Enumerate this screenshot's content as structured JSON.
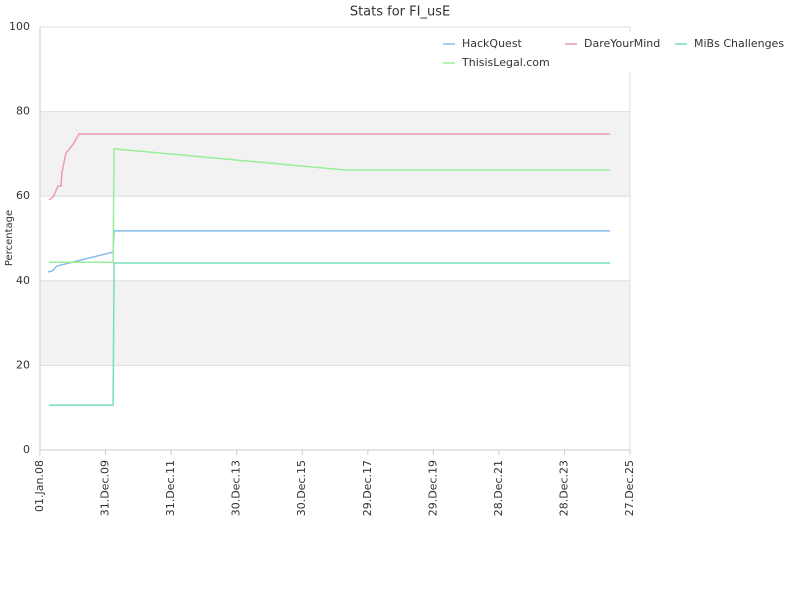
{
  "chart_data": {
    "type": "line",
    "title": "Stats for FI_usE",
    "y_label": "Percentage",
    "xlim": [
      "2008-01-01",
      "2025-12-27"
    ],
    "xticks": [
      {
        "value": "2008-01-01",
        "label": "01.Jan.08"
      },
      {
        "value": "2009-12-31",
        "label": "31.Dec.09"
      },
      {
        "value": "2011-12-31",
        "label": "31.Dec.11"
      },
      {
        "value": "2013-12-30",
        "label": "30.Dec.13"
      },
      {
        "value": "2015-12-30",
        "label": "30.Dec.15"
      },
      {
        "value": "2017-12-29",
        "label": "29.Dec.17"
      },
      {
        "value": "2019-12-29",
        "label": "29.Dec.19"
      },
      {
        "value": "2021-12-28",
        "label": "28.Dec.21"
      },
      {
        "value": "2023-12-28",
        "label": "28.Dec.23"
      },
      {
        "value": "2025-12-27",
        "label": "27.Dec.25"
      }
    ],
    "ylim": [
      0,
      100
    ],
    "yticks": [
      0,
      20,
      40,
      60,
      80,
      100
    ],
    "grid": true,
    "legend": "top-right",
    "series": [
      {
        "name": "HackQuest",
        "color": "#88bbee",
        "x": [
          "2008-03-30",
          "2008-05-15",
          "2008-07-08",
          "2010-03-25",
          "2010-04-05",
          "2025-05-20"
        ],
        "values": [
          42.1,
          42.3,
          43.5,
          46.8,
          51.8,
          51.8
        ]
      },
      {
        "name": "DareYourMind",
        "color": "#ee99bb",
        "x": [
          "2008-04-09",
          "2008-05-26",
          "2008-07-19",
          "2008-08-22",
          "2008-09-02",
          "2008-10-16",
          "2009-01-05",
          "2009-03-10",
          "2025-05-20"
        ],
        "values": [
          59.1,
          59.8,
          62.4,
          62.4,
          65.7,
          70.2,
          72.3,
          74.7,
          74.7
        ]
      },
      {
        "name": "MiBs Challenges",
        "color": "#77ddbb",
        "x": [
          "2008-04-09",
          "2010-03-25",
          "2010-04-05",
          "2025-05-20"
        ],
        "values": [
          10.6,
          10.6,
          44.2,
          44.2
        ]
      },
      {
        "name": "ThisisLegal.com",
        "color": "#99ee99",
        "x": [
          "2008-04-09",
          "2010-03-25",
          "2010-04-05",
          "2017-04-20",
          "2025-05-20"
        ],
        "values": [
          44.4,
          44.4,
          71.2,
          66.2,
          66.2
        ]
      }
    ]
  }
}
